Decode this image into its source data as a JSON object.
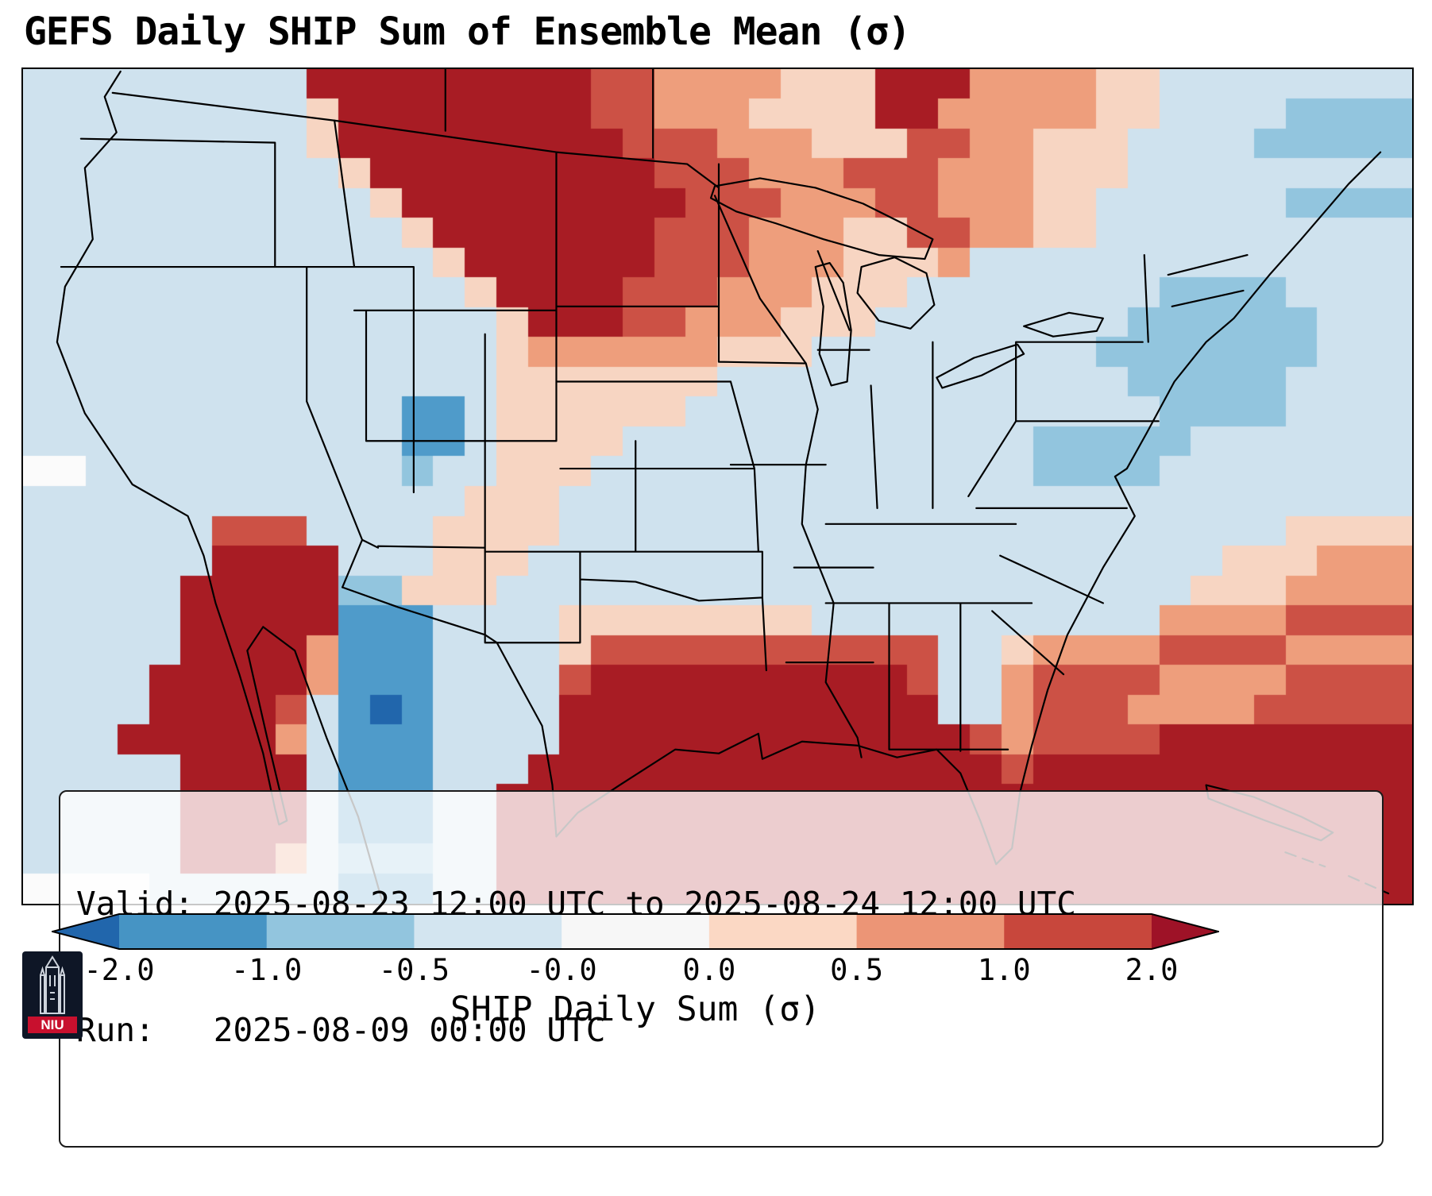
{
  "title": "GEFS Daily SHIP Sum of Ensemble Mean (σ)",
  "info_box": {
    "line1": "Valid: 2025-08-23 12:00 UTC to 2025-08-24 12:00 UTC",
    "line2": "Run:   2025-08-09 00:00 UTC"
  },
  "colorbar": {
    "label": "SHIP Daily Sum (σ)",
    "ticks": [
      "-2.0",
      "-1.0",
      "-0.5",
      "-0.0",
      "0.0",
      "0.5",
      "1.0",
      "2.0"
    ],
    "segments": [
      "#4694c4",
      "#92c5de",
      "#d3e5f0",
      "#f7f7f7",
      "#fbd8c4",
      "#ec9576",
      "#c8473c"
    ],
    "under_color": "#2166ac",
    "over_color": "#9e1227",
    "outline_color": "#000000"
  },
  "logo": {
    "label": "NIU",
    "bg_color": "#0e1626",
    "banner_color": "#c8102e"
  },
  "chart_data": {
    "type": "heatmap",
    "title": "GEFS Daily SHIP Sum of Ensemble Mean (σ)",
    "xlabel": "SHIP Daily Sum (σ)",
    "valid_label": "Valid: 2025-08-23 12:00 UTC to 2025-08-24 12:00 UTC",
    "run_label": "Run:   2025-08-09 00:00 UTC",
    "colorbar_ticks": [
      -2.0,
      -1.0,
      -0.5,
      -0.0,
      0.0,
      0.5,
      1.0,
      2.0
    ],
    "colorbar_extend": "both",
    "legend_position": "bottom",
    "grid_shape": [
      28,
      44
    ],
    "value_key": {
      "N": -2.0,
      "B": -1.0,
      "b": -0.5,
      "c": -0.15,
      "w": 0.0,
      "p": 0.2,
      "o": 0.5,
      "r": 1.0,
      "D": 2.0
    },
    "color_key": {
      "N": "#2166ac",
      "B": "#4f9bca",
      "b": "#92c5de",
      "c": "#cfe2ee",
      "w": "#fbfbfb",
      "p": "#f7d5c2",
      "o": "#ee9e7c",
      "r": "#cc5145",
      "D": "#a81c24"
    },
    "grid": [
      "cccccccccDDDDDDDDDrroooopppDDDooooppcccccccc",
      "cccccccccpDDDDDDDDrroooppppDDoooooppccccbbbb",
      "cccccccccpDDDDDDDDDrrroooppprroopppccccbbbbb",
      "ccccccccccpDDDDDDDDDrrrooorrrooopppccccccccc",
      "cccccccccccpDDDDDDDDDrrrooorroooppccccccbbbb",
      "ccccccccccccpDDDDDDDrrrooopprrooppcccccccccc",
      "cccccccccccccpDDDDDDrrrooopppocccccccccccccc",
      "ccccccccccccccpDDDDrrrooopppccccccccbbbbcccc",
      "cccccccccccccccpDDDrrooopppccccccccbbbbbbccc",
      "cccccccccccccccpoooooopppcccccccccbbbbbbbccc",
      "cccccccccccccccpppppppcccccccccccccbbbbbcccc",
      "ccccccccccccBBcppppppcccccccccccccccbbbbcccc",
      "ccccccccccccBBcppppcccccccccccccbbbbbccccccc",
      "wwccccccccccbccpppccccccccccccccbbbbcccccccc",
      "ccccccccccccccpppccccccccccccccccccccccccccc",
      "ccccccrrrccccppppcccccccccccccccccccccccpppp",
      "ccccccDDDDcccpppccccccccccccccccccccccpppooo",
      "cccccDDDDDbbpppccccccccccccccccccccccpppoooo",
      "cccccDDDDDBBBccccppppppppcccccccccccoooorrrr",
      "cccccDDDDoBBBccccprrrrrrrrrrrccpoooorrrroooo",
      "ccccDDDDDoBBBccccrDDDDDDDDDDrccorrrroooorrrr",
      "ccccDDDDrcBNBccccDDDDDDDDDDDDccorrroooorrrrr",
      "cccDDDDDocBBBccccDDDDDDDDDDDDDrorrrrDDDDDDDD",
      "cccccDDDDcBBBcccDDDDDDDDDDDDDDDrDDDDDDDDDDDD",
      "cccccDDDDcBBBccDDDDDDDDDDDDDDDDDDDDDDDDDDDDD",
      "cccccDDDDcBBBccDDDDDDDDDDDDDDDDDDDDDDDDDDDDD",
      "cccccDDDocbbbccDDDDDDDDDDDDDDDDDDDDDDDDDDDDD",
      "wwwwccccccBBBccDDDDDDDDDDDDDDDDDDDDDDDDDDDDD"
    ]
  }
}
